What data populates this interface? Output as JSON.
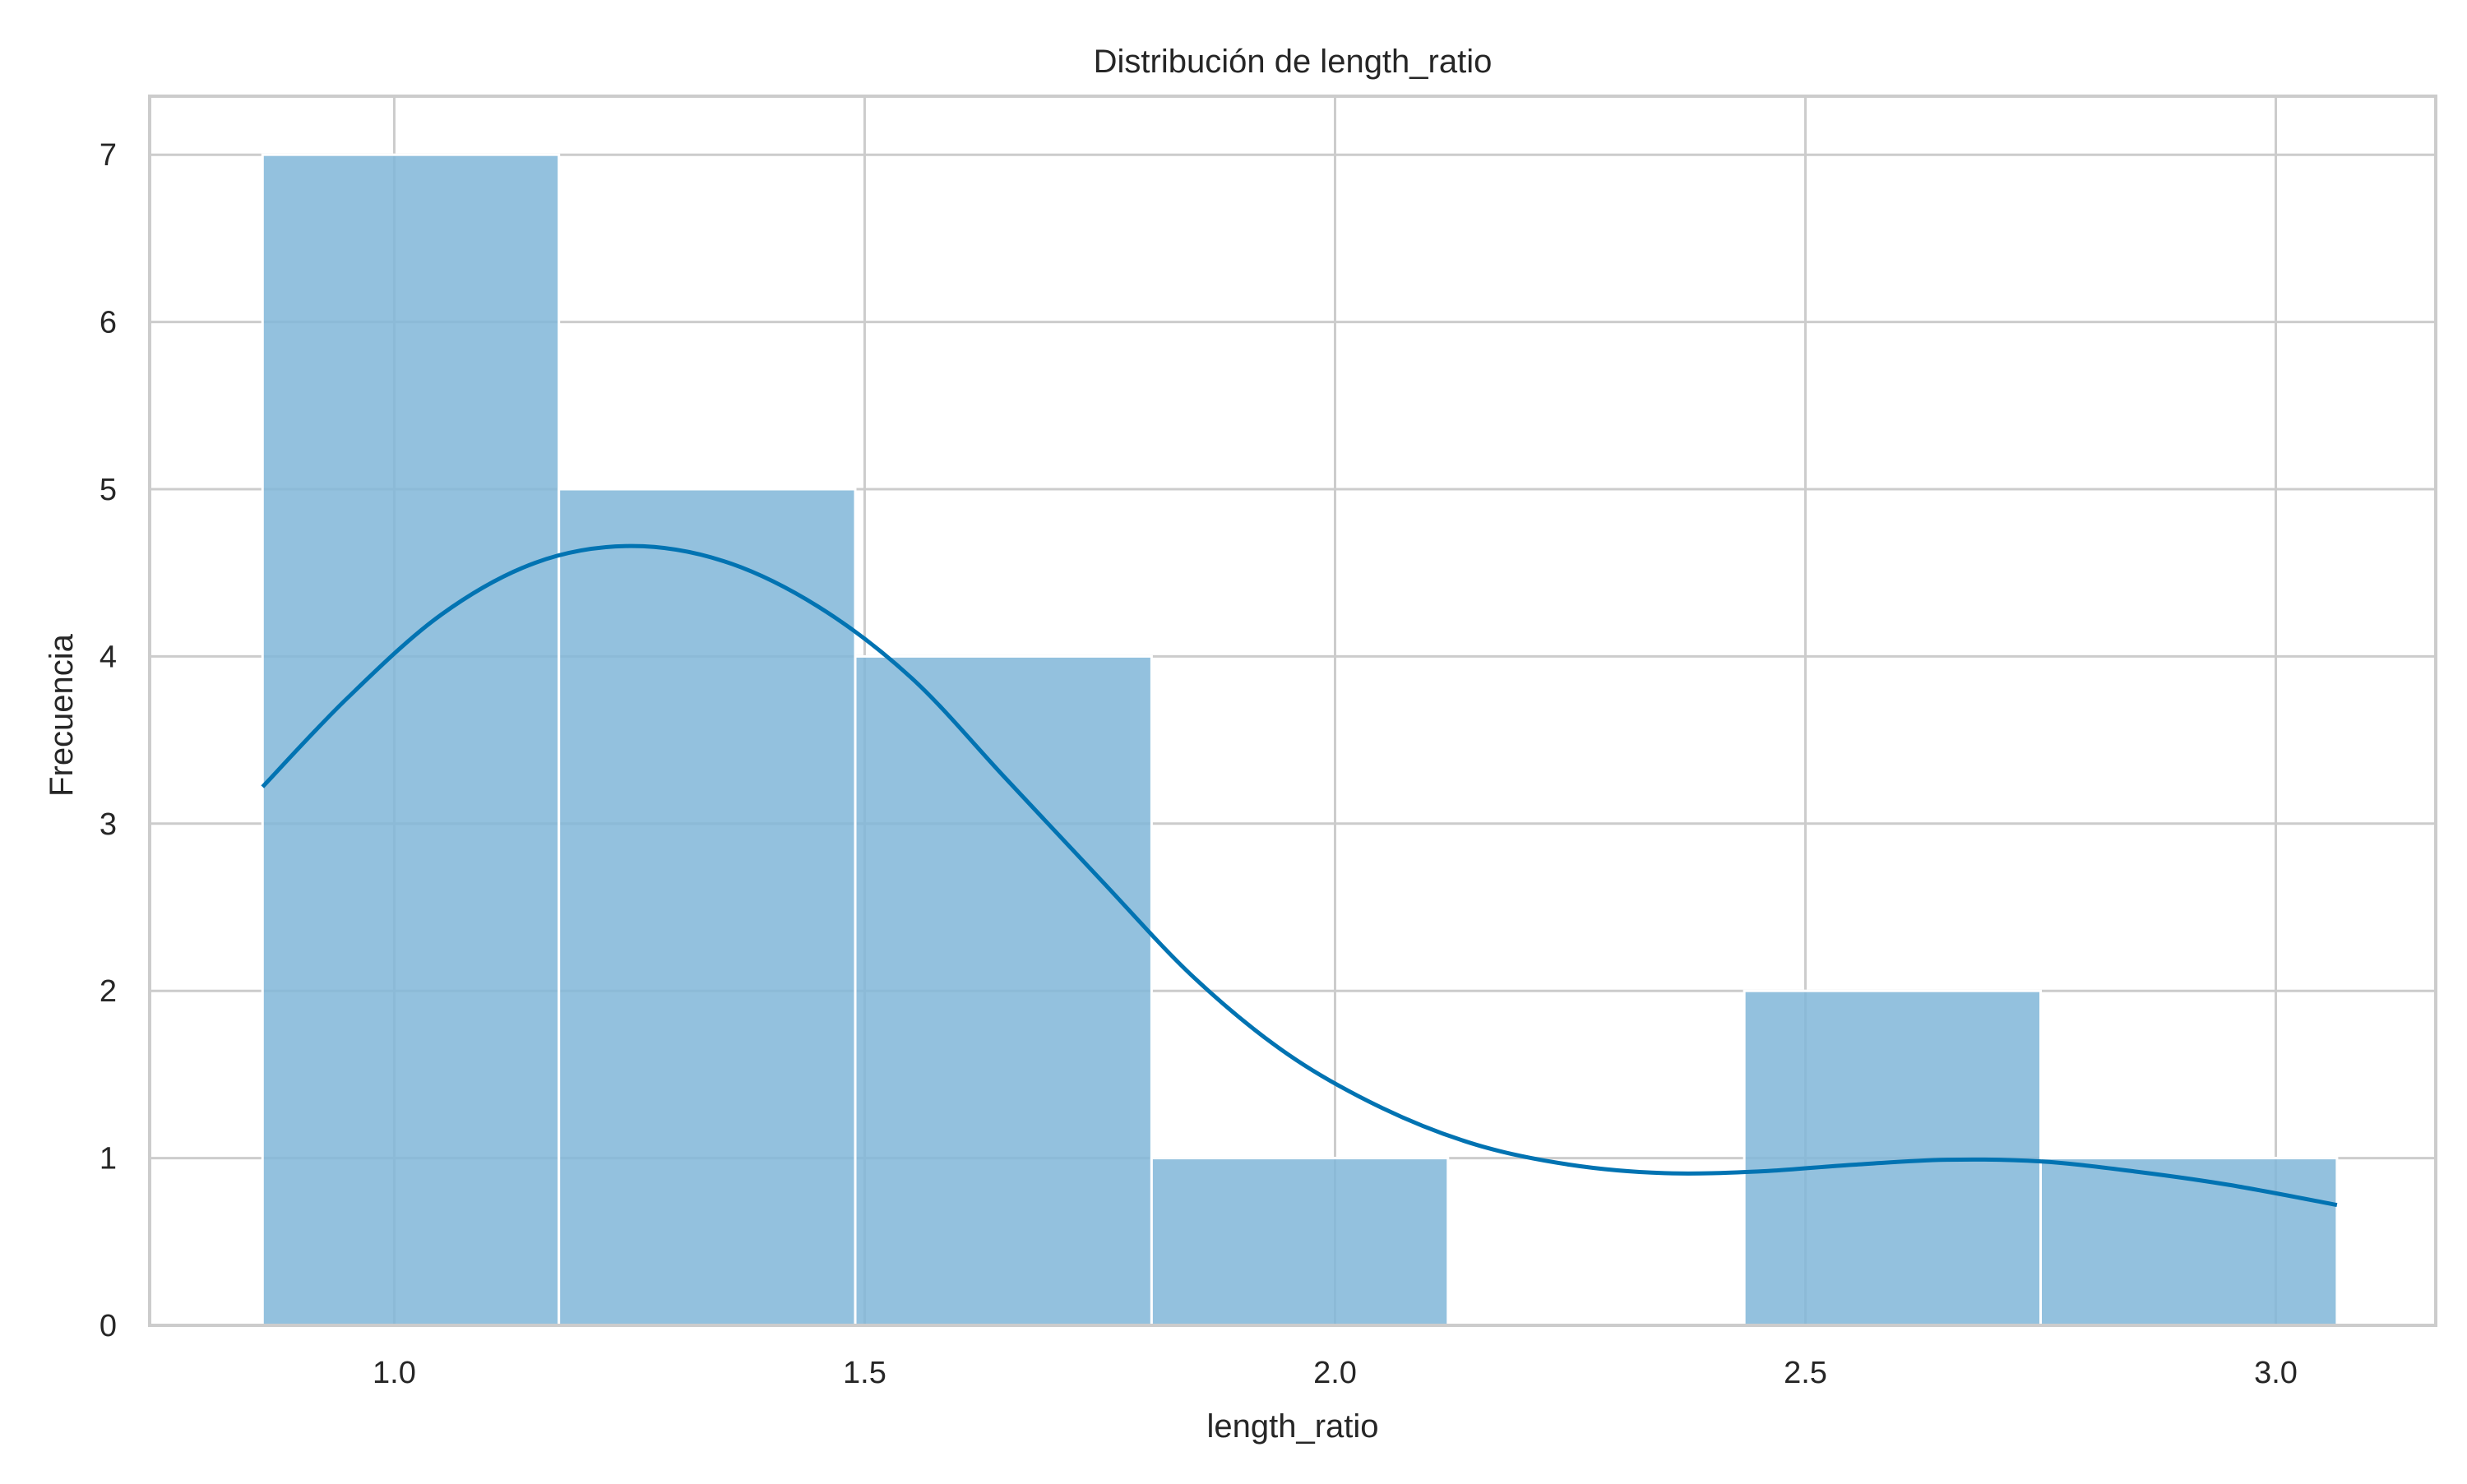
{
  "chart_data": {
    "type": "bar",
    "title": "Distribución de length_ratio",
    "xlabel": "length_ratio",
    "ylabel": "Frecuencia",
    "xlim": [
      0.74,
      3.17
    ],
    "ylim": [
      0,
      7.35
    ],
    "xticks": [
      1.0,
      1.5,
      2.0,
      2.5,
      3.0
    ],
    "xtick_labels": [
      "1.0",
      "1.5",
      "2.0",
      "2.5",
      "3.0"
    ],
    "yticks": [
      0,
      1,
      2,
      3,
      4,
      5,
      6,
      7
    ],
    "ytick_labels": [
      "0",
      "1",
      "2",
      "3",
      "4",
      "5",
      "6",
      "7"
    ],
    "grid": true,
    "bins": [
      {
        "x0": 0.86,
        "x1": 1.175,
        "count": 7
      },
      {
        "x0": 1.175,
        "x1": 1.49,
        "count": 5
      },
      {
        "x0": 1.49,
        "x1": 1.805,
        "count": 4
      },
      {
        "x0": 1.805,
        "x1": 2.12,
        "count": 1
      },
      {
        "x0": 2.12,
        "x1": 2.435,
        "count": 0
      },
      {
        "x0": 2.435,
        "x1": 2.75,
        "count": 2
      },
      {
        "x0": 2.75,
        "x1": 3.065,
        "count": 1
      }
    ],
    "kde": {
      "x": [
        0.86,
        0.95,
        1.05,
        1.15,
        1.25,
        1.35,
        1.45,
        1.55,
        1.65,
        1.75,
        1.85,
        1.95,
        2.05,
        2.15,
        2.25,
        2.35,
        2.45,
        2.55,
        2.65,
        2.75,
        2.85,
        2.95,
        3.065
      ],
      "y": [
        3.22,
        3.75,
        4.25,
        4.56,
        4.66,
        4.57,
        4.3,
        3.87,
        3.27,
        2.67,
        2.08,
        1.62,
        1.3,
        1.08,
        0.96,
        0.91,
        0.92,
        0.96,
        0.99,
        0.98,
        0.92,
        0.84,
        0.72
      ]
    },
    "colors": {
      "bar_fill": "#80b6d8",
      "bar_edge": "#ffffff",
      "kde_line": "#0173b2",
      "grid": "#cccccc",
      "spine": "#cccccc"
    }
  }
}
